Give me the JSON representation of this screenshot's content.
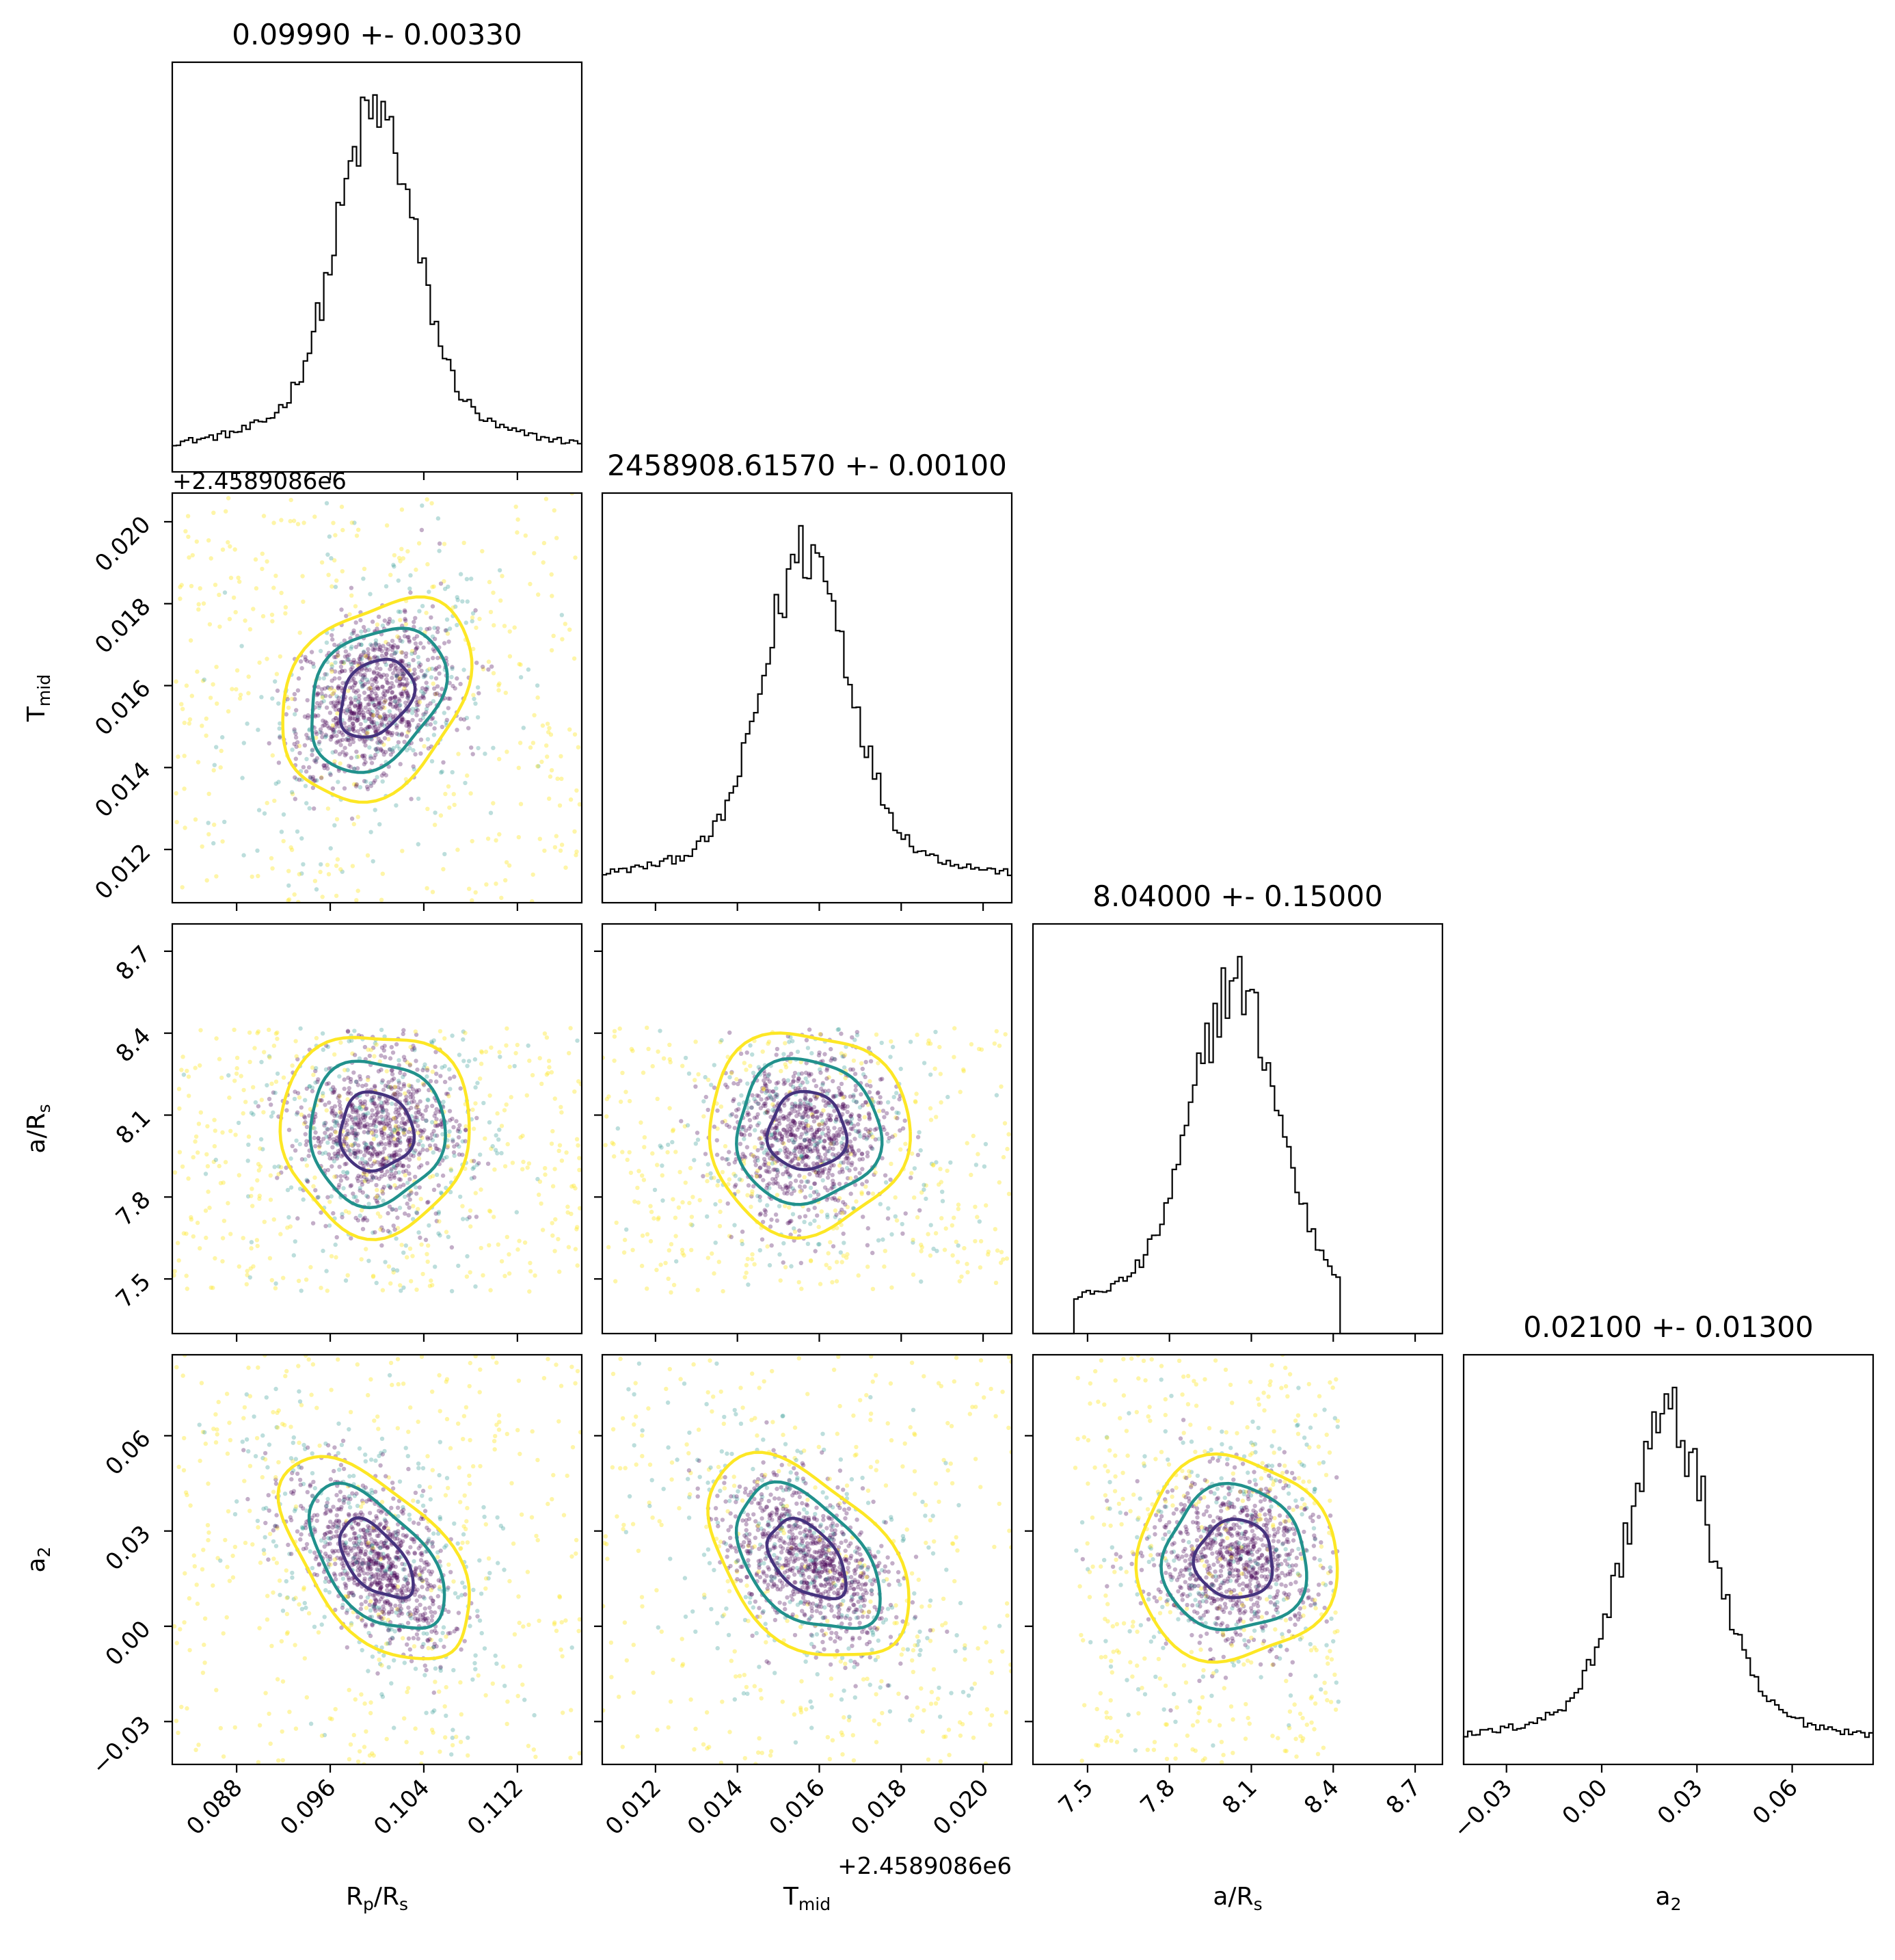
{
  "chart_data": {
    "type": "scatter",
    "layout": "corner-plot",
    "colors": {
      "level_1sigma": "#46337e",
      "level_2sigma": "#21918c",
      "level_3sigma": "#fde725",
      "point_dense": "#440154",
      "histogram": "#000000"
    },
    "parameters": [
      {
        "id": "rp",
        "label": "Rp/Rs",
        "title": "0.09990 +- 0.00330",
        "median": 0.0999,
        "sigma": 0.0033,
        "range": [
          0.0825,
          0.1175
        ],
        "ticks": [
          0.088,
          0.096,
          0.104,
          0.112
        ],
        "tick_labels": [
          "0.088",
          "0.096",
          "0.104",
          "0.112"
        ],
        "offset": ""
      },
      {
        "id": "tmid",
        "label": "Tmid",
        "title": "2458908.61570 +- 0.00100",
        "median": 0.0157,
        "sigma": 0.001,
        "range": [
          0.0107,
          0.0207
        ],
        "ticks": [
          0.012,
          0.014,
          0.016,
          0.018,
          0.02
        ],
        "tick_labels": [
          "0.012",
          "0.014",
          "0.016",
          "0.018",
          "0.020"
        ],
        "offset": "+2.4589086e6"
      },
      {
        "id": "ars",
        "label": "a/Rs",
        "title": "8.04000 +- 0.15000",
        "median": 8.04,
        "sigma": 0.15,
        "range": [
          7.3,
          8.8
        ],
        "ticks": [
          7.5,
          7.8,
          8.1,
          8.4,
          8.7
        ],
        "tick_labels": [
          "7.5",
          "7.8",
          "8.1",
          "8.4",
          "8.7"
        ],
        "offset": ""
      },
      {
        "id": "a2",
        "label": "a2",
        "title": "0.02100 +- 0.01300",
        "median": 0.021,
        "sigma": 0.013,
        "range": [
          -0.0435,
          0.0855
        ],
        "ticks": [
          -0.03,
          0.0,
          0.03,
          0.06
        ],
        "tick_labels": [
          "−0.03",
          "0.00",
          "0.03",
          "0.06"
        ],
        "offset": ""
      }
    ],
    "axis_labels": {
      "rp": {
        "main": "R",
        "sub1": "p",
        "mid": "/R",
        "sub2": "s"
      },
      "tmid": {
        "main": "T",
        "sub1": "mid",
        "mid": "",
        "sub2": ""
      },
      "ars": {
        "main": "a/R",
        "sub1": "s",
        "mid": "",
        "sub2": ""
      },
      "a2": {
        "main": "a",
        "sub1": "2",
        "mid": "",
        "sub2": ""
      }
    },
    "correlations": {
      "tmid_rp": 0.3,
      "ars_rp": 0.0,
      "ars_tmid": 0.0,
      "a2_rp": -0.55,
      "a2_tmid": -0.45,
      "a2_ars": 0.0
    },
    "sample_limits": {
      "ars": [
        7.45,
        8.42
      ]
    },
    "grid": false,
    "legend": "none"
  }
}
